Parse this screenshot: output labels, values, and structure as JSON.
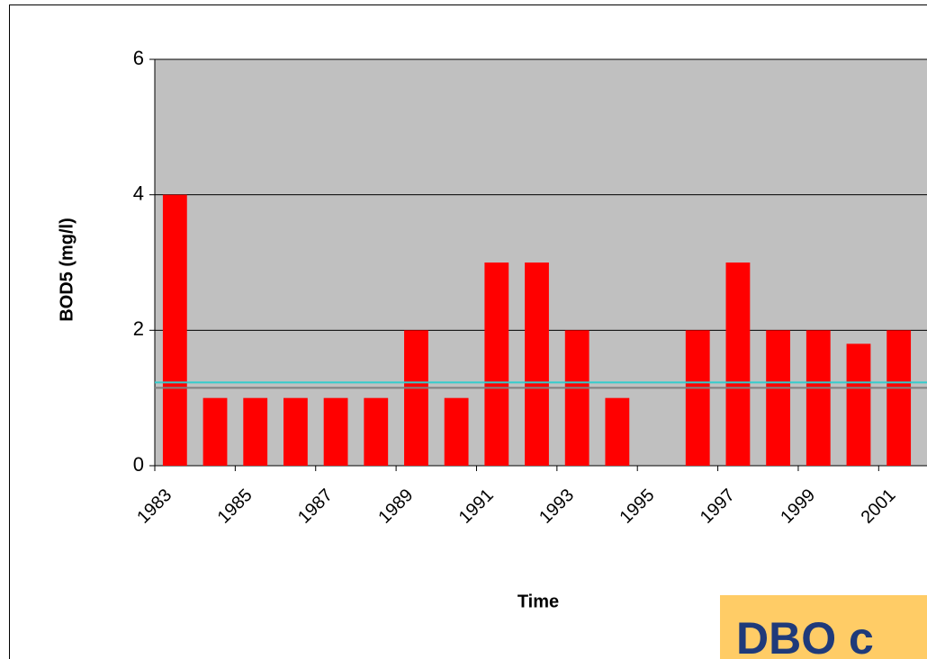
{
  "chart_data": {
    "type": "bar",
    "y_label": "BOD5 (mg/l)",
    "x_label": "Time",
    "categories": [
      "1983",
      null,
      "1985",
      null,
      "1987",
      null,
      "1989",
      null,
      "1991",
      null,
      "1993",
      null,
      "1995",
      null,
      "1997",
      null,
      "1999",
      null,
      "2001"
    ],
    "values": [
      4,
      1,
      1,
      1,
      1,
      1,
      2,
      1,
      3,
      3,
      2,
      1,
      null,
      2,
      3,
      2,
      2,
      1.8,
      2
    ],
    "color": "#ff0000",
    "ylim": [
      0,
      6
    ],
    "yticks": [
      0,
      2,
      4,
      6
    ],
    "grid": true,
    "reference_lines": [
      {
        "value": 1.23,
        "color": "#33cccc"
      },
      {
        "value": 1.15,
        "color": "#808080"
      }
    ]
  },
  "overlay_text": "DBO c"
}
